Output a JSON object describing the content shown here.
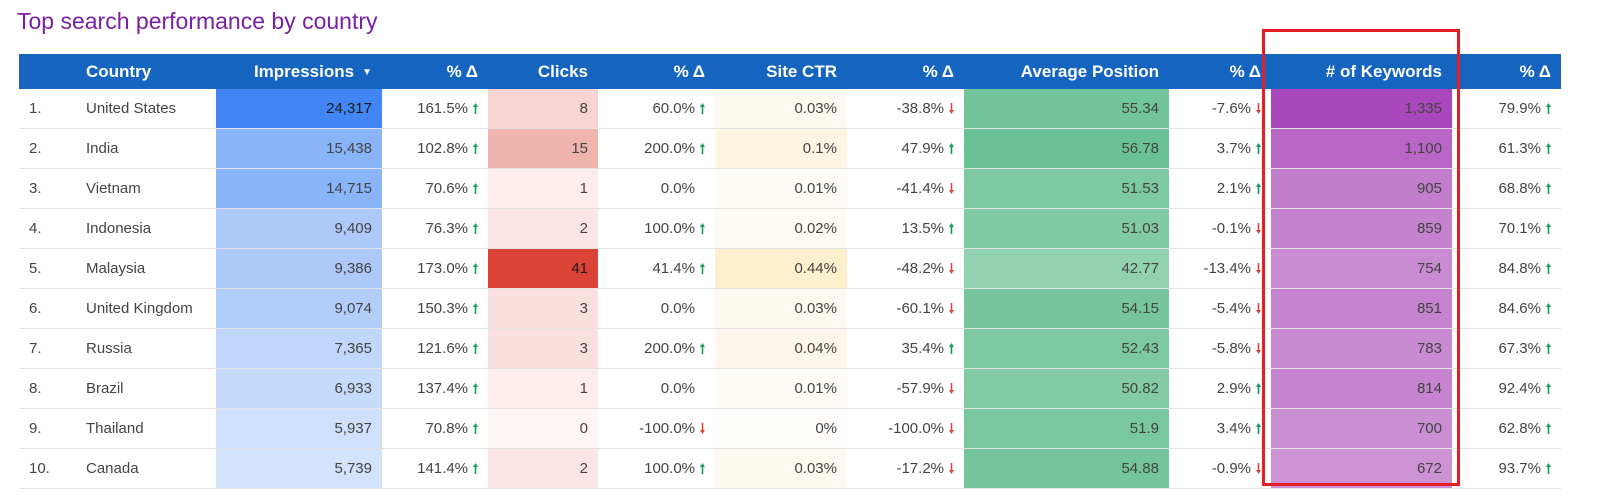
{
  "title": "Top search performance by country",
  "columns": {
    "idx": "",
    "country": "Country",
    "impressions": "Impressions",
    "imp_delta": "% Δ",
    "clicks": "Clicks",
    "clicks_delta": "% Δ",
    "ctr": "Site CTR",
    "ctr_delta": "% Δ",
    "position": "Average Position",
    "pos_delta": "% Δ",
    "keywords": "# of Keywords",
    "kw_delta": "% Δ"
  },
  "sort_icon": "sort-descending-icon",
  "rows": [
    {
      "idx": "1.",
      "country": "United States",
      "impressions": "24,317",
      "imp_delta": "161.5%",
      "imp_dir": "up",
      "clicks": "8",
      "clicks_delta": "60.0%",
      "clicks_dir": "up",
      "ctr": "0.03%",
      "ctr_delta": "-38.8%",
      "ctr_dir": "down",
      "position": "55.34",
      "pos_delta": "-7.6%",
      "pos_dir": "down",
      "keywords": "1,335",
      "kw_delta": "79.9%",
      "kw_dir": "up"
    },
    {
      "idx": "2.",
      "country": "India",
      "impressions": "15,438",
      "imp_delta": "102.8%",
      "imp_dir": "up",
      "clicks": "15",
      "clicks_delta": "200.0%",
      "clicks_dir": "up",
      "ctr": "0.1%",
      "ctr_delta": "47.9%",
      "ctr_dir": "up",
      "position": "56.78",
      "pos_delta": "3.7%",
      "pos_dir": "up",
      "keywords": "1,100",
      "kw_delta": "61.3%",
      "kw_dir": "up"
    },
    {
      "idx": "3.",
      "country": "Vietnam",
      "impressions": "14,715",
      "imp_delta": "70.6%",
      "imp_dir": "up",
      "clicks": "1",
      "clicks_delta": "0.0%",
      "clicks_dir": "",
      "ctr": "0.01%",
      "ctr_delta": "-41.4%",
      "ctr_dir": "down",
      "position": "51.53",
      "pos_delta": "2.1%",
      "pos_dir": "up",
      "keywords": "905",
      "kw_delta": "68.8%",
      "kw_dir": "up"
    },
    {
      "idx": "4.",
      "country": "Indonesia",
      "impressions": "9,409",
      "imp_delta": "76.3%",
      "imp_dir": "up",
      "clicks": "2",
      "clicks_delta": "100.0%",
      "clicks_dir": "up",
      "ctr": "0.02%",
      "ctr_delta": "13.5%",
      "ctr_dir": "up",
      "position": "51.03",
      "pos_delta": "-0.1%",
      "pos_dir": "down",
      "keywords": "859",
      "kw_delta": "70.1%",
      "kw_dir": "up"
    },
    {
      "idx": "5.",
      "country": "Malaysia",
      "impressions": "9,386",
      "imp_delta": "173.0%",
      "imp_dir": "up",
      "clicks": "41",
      "clicks_delta": "41.4%",
      "clicks_dir": "up",
      "ctr": "0.44%",
      "ctr_delta": "-48.2%",
      "ctr_dir": "down",
      "position": "42.77",
      "pos_delta": "-13.4%",
      "pos_dir": "down",
      "keywords": "754",
      "kw_delta": "84.8%",
      "kw_dir": "up"
    },
    {
      "idx": "6.",
      "country": "United Kingdom",
      "impressions": "9,074",
      "imp_delta": "150.3%",
      "imp_dir": "up",
      "clicks": "3",
      "clicks_delta": "0.0%",
      "clicks_dir": "",
      "ctr": "0.03%",
      "ctr_delta": "-60.1%",
      "ctr_dir": "down",
      "position": "54.15",
      "pos_delta": "-5.4%",
      "pos_dir": "down",
      "keywords": "851",
      "kw_delta": "84.6%",
      "kw_dir": "up"
    },
    {
      "idx": "7.",
      "country": "Russia",
      "impressions": "7,365",
      "imp_delta": "121.6%",
      "imp_dir": "up",
      "clicks": "3",
      "clicks_delta": "200.0%",
      "clicks_dir": "up",
      "ctr": "0.04%",
      "ctr_delta": "35.4%",
      "ctr_dir": "up",
      "position": "52.43",
      "pos_delta": "-5.8%",
      "pos_dir": "down",
      "keywords": "783",
      "kw_delta": "67.3%",
      "kw_dir": "up"
    },
    {
      "idx": "8.",
      "country": "Brazil",
      "impressions": "6,933",
      "imp_delta": "137.4%",
      "imp_dir": "up",
      "clicks": "1",
      "clicks_delta": "0.0%",
      "clicks_dir": "",
      "ctr": "0.01%",
      "ctr_delta": "-57.9%",
      "ctr_dir": "down",
      "position": "50.82",
      "pos_delta": "2.9%",
      "pos_dir": "up",
      "keywords": "814",
      "kw_delta": "92.4%",
      "kw_dir": "up"
    },
    {
      "idx": "9.",
      "country": "Thailand",
      "impressions": "5,937",
      "imp_delta": "70.8%",
      "imp_dir": "up",
      "clicks": "0",
      "clicks_delta": "-100.0%",
      "clicks_dir": "down",
      "ctr": "0%",
      "ctr_delta": "-100.0%",
      "ctr_dir": "down",
      "position": "51.9",
      "pos_delta": "3.4%",
      "pos_dir": "up",
      "keywords": "700",
      "kw_delta": "62.8%",
      "kw_dir": "up"
    },
    {
      "idx": "10.",
      "country": "Canada",
      "impressions": "5,739",
      "imp_delta": "141.4%",
      "imp_dir": "up",
      "clicks": "2",
      "clicks_delta": "100.0%",
      "clicks_dir": "up",
      "ctr": "0.03%",
      "ctr_delta": "-17.2%",
      "ctr_dir": "down",
      "position": "54.88",
      "pos_delta": "-0.9%",
      "pos_dir": "down",
      "keywords": "672",
      "kw_delta": "93.7%",
      "kw_dir": "up"
    }
  ],
  "heat": {
    "impressions": [
      "#4285f4",
      "#8ab4f8",
      "#8ab4f8",
      "#adc9fa",
      "#adc9fa",
      "#b3cdfa",
      "#c0d6fb",
      "#c6dafb",
      "#cfe0fc",
      "#d3e3fc"
    ],
    "clicks": [
      "#f6d4d2",
      "#efb4ae",
      "#fcedec",
      "#fbe6e5",
      "#db4437",
      "#f9e0de",
      "#f9e0de",
      "#fcedec",
      "#fdf6f5",
      "#fbe6e5"
    ],
    "ctr": [
      "#fefaf1",
      "#fdf4e2",
      "#fefcf7",
      "#fefbf4",
      "#fdefcc",
      "#fefaf1",
      "#fdf7eb",
      "#fefcf7",
      "#fffefc",
      "#fefaf1"
    ],
    "position": [
      "#72c49a",
      "#6ac196",
      "#7dc9a2",
      "#80caa4",
      "#93d2b0",
      "#76c59c",
      "#7bc8a1",
      "#82cba5",
      "#78c79f",
      "#74c59b"
    ],
    "keywords": [
      "#ab47bc",
      "#b966c6",
      "#c27dcc",
      "#c481ce",
      "#c98bd2",
      "#c583cf",
      "#c88ad1",
      "#c684d0",
      "#ca8ed2",
      "#cc92d4"
    ]
  },
  "colors": {
    "header_bg": "#1565c0",
    "title": "#7b1fa2",
    "arrow_up": "#0f9d58",
    "arrow_down": "#db4437",
    "highlight_box": "#e61e25"
  },
  "icons": {
    "up": "arrow-up-icon",
    "down": "arrow-down-icon"
  }
}
